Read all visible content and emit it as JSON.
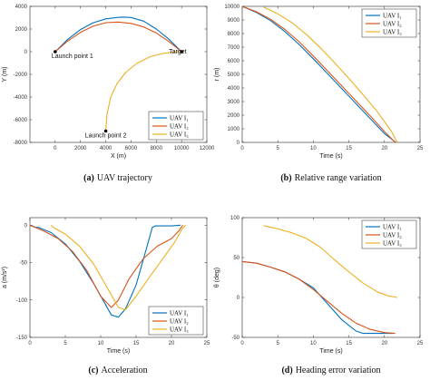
{
  "figure": {
    "colors": [
      "#0072BD",
      "#D95319",
      "#EDB120"
    ],
    "legend": [
      "UAV I₁",
      "UAV I₂",
      "UAV I₃"
    ]
  },
  "chart_data": [
    {
      "id": "a",
      "type": "line",
      "caption_label": "(a)",
      "caption_text": "UAV trajectory",
      "xlabel": "X (m)",
      "ylabel": "Y (m)",
      "xlim": [
        -2000,
        12000
      ],
      "ylim": [
        -8000,
        4000
      ],
      "xticks": [
        0,
        2000,
        4000,
        6000,
        8000,
        10000,
        12000
      ],
      "yticks": [
        -8000,
        -6000,
        -4000,
        -2000,
        0,
        2000,
        4000
      ],
      "grid": false,
      "legend_position": "lower-right",
      "series": [
        {
          "name": "UAV I₁",
          "x": [
            0,
            1000,
            2000,
            3000,
            4000,
            5000,
            5500,
            6000,
            7000,
            8000,
            9000,
            10000
          ],
          "y": [
            0,
            1100,
            1950,
            2550,
            2900,
            3030,
            3050,
            3020,
            2700,
            2000,
            1100,
            0
          ]
        },
        {
          "name": "UAV I₂",
          "x": [
            0,
            1000,
            2000,
            3000,
            4000,
            5000,
            6000,
            7000,
            8000,
            9000,
            10000
          ],
          "y": [
            0,
            950,
            1700,
            2250,
            2560,
            2620,
            2500,
            2180,
            1650,
            900,
            0
          ]
        },
        {
          "name": "UAV I₃",
          "x": [
            4000,
            4100,
            4400,
            4900,
            5600,
            6500,
            7500,
            8500,
            9300,
            10000
          ],
          "y": [
            -7000,
            -5500,
            -4000,
            -2800,
            -1800,
            -1000,
            -450,
            -150,
            -30,
            0
          ]
        }
      ],
      "annotations": [
        {
          "text": "Launch point 1",
          "x": 0,
          "y": 0
        },
        {
          "text": "Target",
          "x": 10000,
          "y": 0
        },
        {
          "text": "Launch point 2",
          "x": 4000,
          "y": -7000
        }
      ]
    },
    {
      "id": "b",
      "type": "line",
      "caption_label": "(b)",
      "caption_text": "Relative range variation",
      "xlabel": "Time (s)",
      "ylabel": "r (m)",
      "xlim": [
        0,
        25
      ],
      "ylim": [
        0,
        10000
      ],
      "xticks": [
        0,
        5,
        10,
        15,
        20,
        25
      ],
      "yticks": [
        0,
        1000,
        2000,
        3000,
        4000,
        5000,
        6000,
        7000,
        8000,
        9000,
        10000
      ],
      "grid": false,
      "legend_position": "top-right",
      "series": [
        {
          "name": "UAV I₁",
          "x": [
            0,
            2,
            4,
            6,
            8,
            10,
            12,
            14,
            16,
            18,
            20,
            21.6
          ],
          "y": [
            10000,
            9550,
            8950,
            8150,
            7200,
            6150,
            5050,
            3950,
            2850,
            1750,
            650,
            0
          ]
        },
        {
          "name": "UAV I₂",
          "x": [
            0,
            2,
            4,
            6,
            8,
            10,
            12,
            14,
            16,
            18,
            20,
            21.5
          ],
          "y": [
            10000,
            9600,
            9050,
            8300,
            7400,
            6350,
            5250,
            4150,
            3050,
            1950,
            800,
            0
          ]
        },
        {
          "name": "UAV I₃",
          "x": [
            3,
            5,
            7,
            9,
            11,
            13,
            15,
            17,
            19,
            21,
            21.8
          ],
          "y": [
            9950,
            9450,
            8800,
            7950,
            6950,
            5850,
            4700,
            3500,
            2250,
            800,
            0
          ]
        }
      ]
    },
    {
      "id": "c",
      "type": "line",
      "caption_label": "(c)",
      "caption_text": "Acceleration",
      "xlabel": "Time (s)",
      "ylabel": "a (m/s²)",
      "xlim": [
        0,
        25
      ],
      "ylim": [
        -150,
        10
      ],
      "xticks": [
        0,
        5,
        10,
        15,
        20,
        25
      ],
      "yticks": [
        -150,
        -100,
        -50,
        0
      ],
      "grid": false,
      "legend_position": "lower-right",
      "series": [
        {
          "name": "UAV I₁",
          "x": [
            0,
            0.8,
            1.2,
            3,
            5,
            7,
            9,
            10.5,
            11.5,
            12.5,
            13.5,
            15,
            16.5,
            17.3,
            17.7,
            20,
            21.3
          ],
          "y": [
            0,
            -3,
            -3,
            -10,
            -25,
            -48,
            -78,
            -103,
            -120,
            -123,
            -112,
            -80,
            -30,
            -3,
            -1,
            -1,
            0
          ]
        },
        {
          "name": "UAV I₂",
          "x": [
            0,
            0.5,
            2,
            4,
            6,
            8,
            10,
            11.5,
            12.5,
            14,
            16,
            18,
            20,
            21,
            21.6
          ],
          "y": [
            0,
            -2,
            -8,
            -18,
            -35,
            -60,
            -95,
            -110,
            -100,
            -72,
            -45,
            -28,
            -18,
            -8,
            0
          ]
        },
        {
          "name": "UAV I₃",
          "x": [
            3,
            3.3,
            5,
            7,
            9,
            11,
            12.5,
            13.5,
            15,
            17,
            19,
            20.5,
            21.5,
            22
          ],
          "y": [
            0,
            -3,
            -12,
            -28,
            -52,
            -85,
            -110,
            -113,
            -95,
            -68,
            -42,
            -22,
            -5,
            0
          ]
        }
      ]
    },
    {
      "id": "d",
      "type": "line",
      "caption_label": "(d)",
      "caption_text": "Heading error variation",
      "xlabel": "Time (s)",
      "ylabel": "θ (deg)",
      "xlim": [
        0,
        25
      ],
      "ylim": [
        -50,
        100
      ],
      "xticks": [
        0,
        5,
        10,
        15,
        20,
        25
      ],
      "yticks": [
        -50,
        0,
        50,
        100
      ],
      "grid": false,
      "legend_position": "top-right",
      "series": [
        {
          "name": "UAV I₁",
          "x": [
            0,
            2,
            4,
            6,
            8,
            10,
            12,
            14,
            16,
            17,
            18,
            21.3
          ],
          "y": [
            45,
            43,
            38,
            32,
            23,
            12,
            -8,
            -28,
            -42,
            -45,
            -45,
            -45
          ]
        },
        {
          "name": "UAV I₂",
          "x": [
            0,
            2,
            4,
            6,
            8,
            10,
            12,
            14,
            16,
            18,
            20,
            21.5
          ],
          "y": [
            45,
            43,
            38,
            32,
            23,
            10,
            -5,
            -20,
            -32,
            -40,
            -44,
            -45
          ]
        },
        {
          "name": "UAV I₃",
          "x": [
            3,
            5,
            7,
            9,
            11,
            13,
            15,
            17,
            19,
            20.5,
            21.8
          ],
          "y": [
            90,
            86,
            81,
            74,
            63,
            47,
            32,
            18,
            7,
            2,
            0
          ]
        }
      ]
    }
  ]
}
